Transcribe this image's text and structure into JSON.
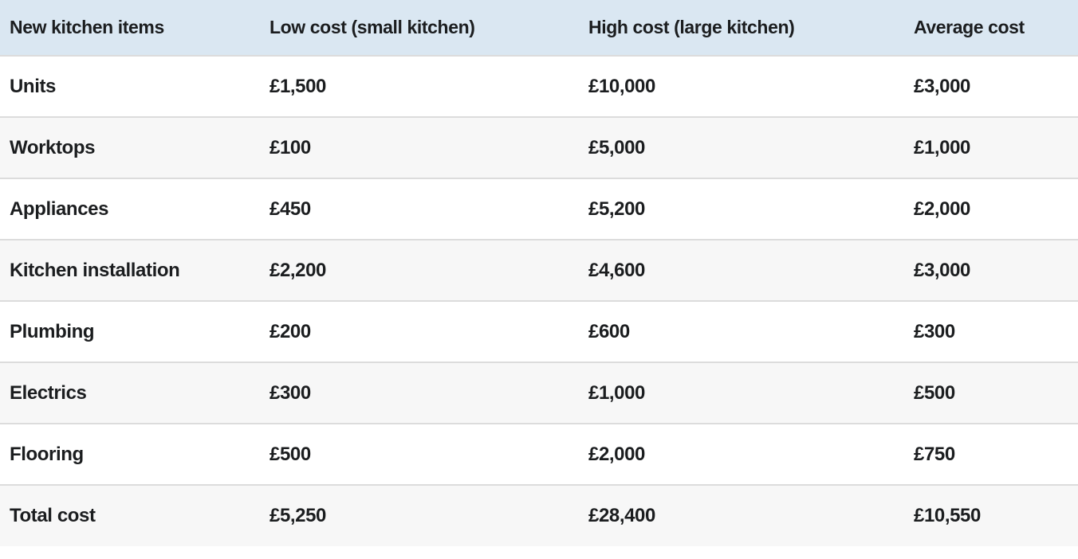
{
  "chart_data": {
    "type": "table",
    "columns": [
      "New kitchen items",
      "Low cost (small kitchen)",
      "High cost (large kitchen)",
      "Average cost"
    ],
    "rows": [
      {
        "item": "Units",
        "low_cost": "£1,500",
        "high_cost": "£10,000",
        "average_cost": "£3,000"
      },
      {
        "item": "Worktops",
        "low_cost": "£100",
        "high_cost": "£5,000",
        "average_cost": "£1,000"
      },
      {
        "item": "Appliances",
        "low_cost": "£450",
        "high_cost": "£5,200",
        "average_cost": "£2,000"
      },
      {
        "item": "Kitchen installation",
        "low_cost": "£2,200",
        "high_cost": "£4,600",
        "average_cost": "£3,000"
      },
      {
        "item": "Plumbing",
        "low_cost": "£200",
        "high_cost": "£600",
        "average_cost": "£300"
      },
      {
        "item": "Electrics",
        "low_cost": "£300",
        "high_cost": "£1,000",
        "average_cost": "£500"
      },
      {
        "item": "Flooring",
        "low_cost": "£500",
        "high_cost": "£2,000",
        "average_cost": "£750"
      },
      {
        "item": "Total cost",
        "low_cost": "£5,250",
        "high_cost": "£28,400",
        "average_cost": "£10,550"
      }
    ]
  },
  "colors": {
    "header_bg": "#dae7f2",
    "row_bg": "#ffffff",
    "row_alt_bg": "#f7f7f7",
    "border": "#dcdcdc",
    "text": "#1b1d1f"
  }
}
